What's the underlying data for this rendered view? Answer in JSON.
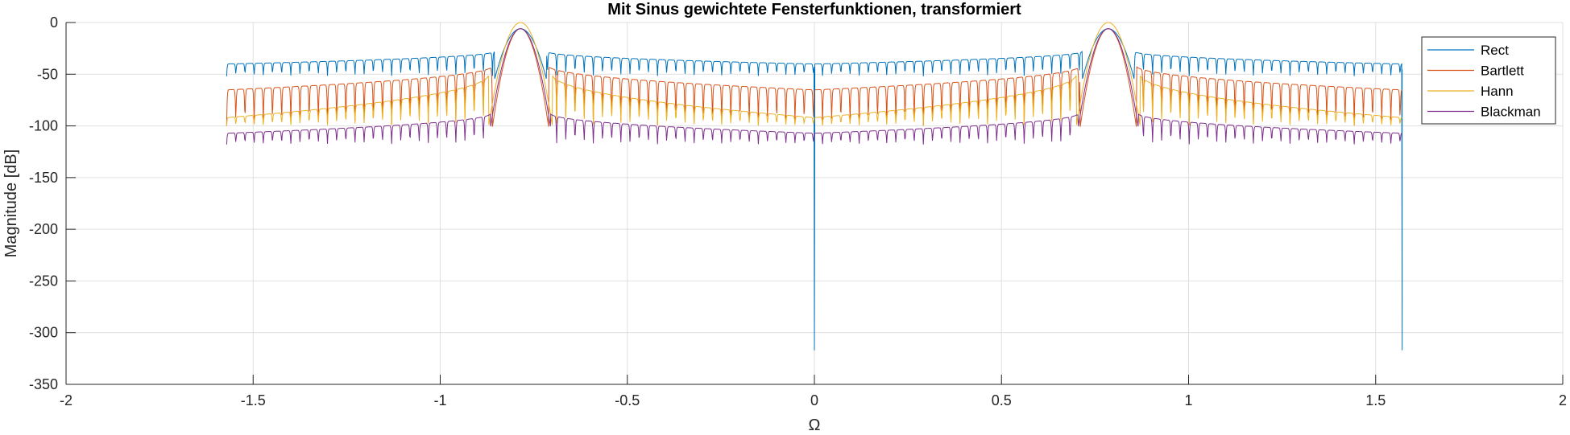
{
  "chart_data": {
    "type": "line",
    "title": "Mit Sinus gewichtete Fensterfunktionen, transformiert",
    "xlabel": "Ω",
    "ylabel": "Magnitude [dB]",
    "xlim": [
      -2,
      2
    ],
    "ylim": [
      -350,
      0
    ],
    "xticks": [
      -2,
      -1.5,
      -1,
      -0.5,
      0,
      0.5,
      1,
      1.5,
      2
    ],
    "xtick_labels": [
      "-2",
      "-1.5",
      "-1",
      "-0.5",
      "0",
      "0.5",
      "1",
      "1.5",
      "2"
    ],
    "yticks": [
      0,
      -50,
      -100,
      -150,
      -200,
      -250,
      -300,
      -350
    ],
    "ytick_labels": [
      "0",
      "-50",
      "-100",
      "-150",
      "-200",
      "-250",
      "-300",
      "-350"
    ],
    "grid": true,
    "legend_position": "top-right",
    "colors": {
      "Rect": "#0072BD",
      "Bartlett": "#D95319",
      "Hann": "#EDB120",
      "Blackman": "#7E2F8E"
    },
    "series": [
      {
        "name": "Rect",
        "x_range": [
          -1.5708,
          1.5708
        ],
        "main_lobe_peak": [
          [
            -0.7854,
            -6
          ],
          [
            0.7854,
            -6
          ]
        ],
        "sidelobe_level_near_peak": -28,
        "sidelobe_level_at_edges": -40,
        "notch_depth": -52,
        "deep_nulls": [
          [
            0,
            -317
          ],
          [
            1.5708,
            -317
          ]
        ]
      },
      {
        "name": "Bartlett",
        "x_range": [
          -1.5708,
          1.5708
        ],
        "main_lobe_peak": [
          [
            -0.7854,
            -6
          ],
          [
            0.7854,
            -6
          ]
        ],
        "sidelobe_level_near_peak": -42,
        "sidelobe_level_at_edges": -65,
        "notch_depth": -100
      },
      {
        "name": "Hann",
        "x_range": [
          -1.5708,
          1.5708
        ],
        "main_lobe_peak": [
          [
            -0.7854,
            0
          ],
          [
            0.7854,
            0
          ]
        ],
        "sidelobe_level_near_peak": -50,
        "sidelobe_level_at_edges": -92,
        "notch_depth": -100
      },
      {
        "name": "Blackman",
        "x_range": [
          -1.5708,
          1.5708
        ],
        "main_lobe_peak": [
          [
            -0.7854,
            -6
          ],
          [
            0.7854,
            -6
          ]
        ],
        "sidelobe_level_near_peak": -88,
        "sidelobe_level_at_edges": -107,
        "notch_depth": -118
      }
    ]
  }
}
